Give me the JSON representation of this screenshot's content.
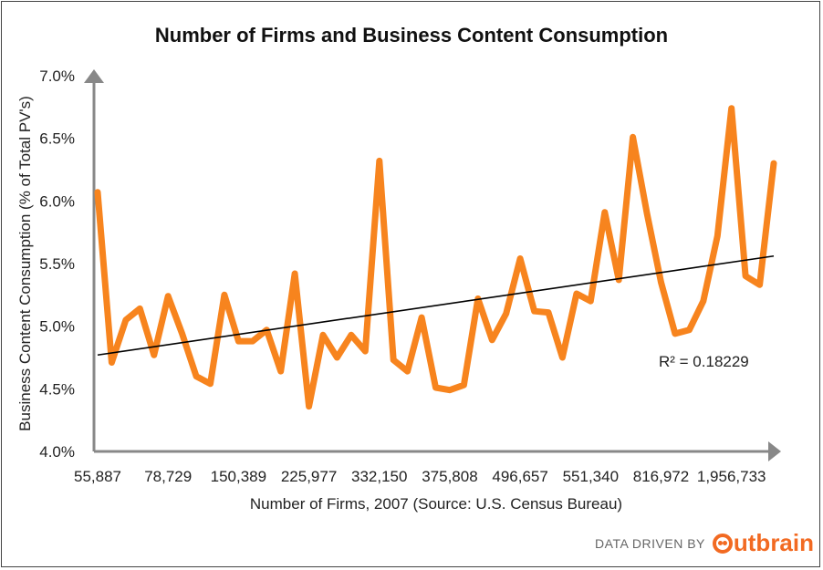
{
  "chart_data": {
    "type": "line",
    "title": "Number of Firms and Business Content Consumption",
    "xlabel": "Number of Firms, 2007 (Source: U.S. Census Bureau)",
    "ylabel": "Business  Content Consumption (% of Total PV's)",
    "ylim": [
      4.0,
      7.0
    ],
    "yticks": [
      "4.0%",
      "4.5%",
      "5.0%",
      "5.5%",
      "6.0%",
      "6.5%",
      "7.0%"
    ],
    "ytick_values": [
      4.0,
      4.5,
      5.0,
      5.5,
      6.0,
      6.5,
      7.0
    ],
    "xticks": [
      "55,887",
      "78,729",
      "150,389",
      "225,977",
      "332,150",
      "375,808",
      "496,657",
      "551,340",
      "816,972",
      "1,956,733"
    ],
    "xtick_indices": [
      0,
      5,
      10,
      15,
      20,
      25,
      30,
      35,
      40,
      45
    ],
    "grid": false,
    "series": [
      {
        "color": "#f7841e",
        "values": [
          6.07,
          4.71,
          5.05,
          5.14,
          4.77,
          5.24,
          4.94,
          4.6,
          4.54,
          5.25,
          4.88,
          4.88,
          4.97,
          4.64,
          5.42,
          4.36,
          4.93,
          4.75,
          4.93,
          4.8,
          6.32,
          4.73,
          4.64,
          5.07,
          4.51,
          4.49,
          4.53,
          5.22,
          4.89,
          5.1,
          5.54,
          5.12,
          5.11,
          4.75,
          5.26,
          5.2,
          5.91,
          5.37,
          6.51,
          5.9,
          5.35,
          4.94,
          4.97,
          5.2,
          5.72,
          6.74,
          5.4,
          5.33,
          6.3
        ]
      }
    ],
    "trendline": {
      "start": 4.77,
      "end": 5.56,
      "color": "#000000",
      "label": "R² = 0.18229"
    }
  },
  "credit": {
    "text": "DATA DRIVEN BY",
    "brand": "utbrain"
  }
}
